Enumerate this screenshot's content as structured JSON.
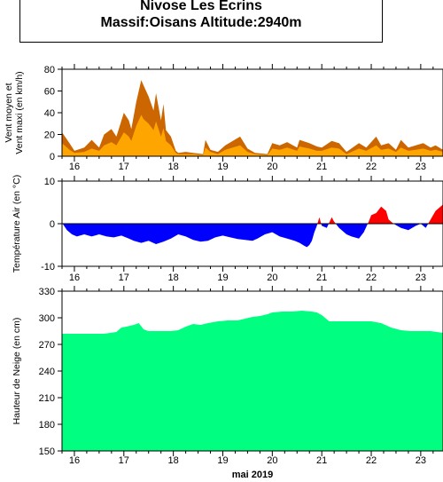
{
  "header": {
    "line1": "Nivose Les Ecrins",
    "line2": "Massif:Oisans Altitude:2940m"
  },
  "colors": {
    "wind_max": "#cc6600",
    "wind_mean": "#ffa500",
    "temp_positive": "#ff0000",
    "temp_negative": "#0000ff",
    "snow": "#00ff80"
  },
  "chart_data": [
    {
      "type": "area",
      "ylabel": "Vent moyen et\nVent maxi (en km/h)",
      "ylim": [
        0,
        80
      ],
      "yticks": [
        0,
        20,
        40,
        60,
        80
      ],
      "xlim": [
        15.75,
        23.45
      ],
      "x_tick_labels": [
        "16",
        "17",
        "18",
        "19",
        "20",
        "21",
        "22",
        "23"
      ],
      "grid": false,
      "series": [
        {
          "key": "max",
          "x": [
            15.75,
            15.9,
            16.0,
            16.2,
            16.35,
            16.5,
            16.6,
            16.75,
            16.85,
            17.0,
            17.1,
            17.15,
            17.25,
            17.35,
            17.4,
            17.5,
            17.6,
            17.65,
            17.75,
            17.8,
            17.85,
            17.95,
            18.05,
            18.1,
            18.25,
            18.4,
            18.6,
            18.65,
            18.75,
            18.9,
            19.05,
            19.2,
            19.35,
            19.5,
            19.65,
            19.9,
            20.0,
            20.15,
            20.3,
            20.5,
            20.55,
            20.75,
            20.9,
            21.0,
            21.2,
            21.35,
            21.5,
            21.75,
            21.9,
            22.1,
            22.2,
            22.35,
            22.5,
            22.6,
            22.75,
            22.9,
            23.05,
            23.2,
            23.3,
            23.45
          ],
          "values": [
            22,
            12,
            5,
            8,
            15,
            8,
            20,
            25,
            18,
            40,
            33,
            25,
            50,
            70,
            65,
            55,
            42,
            58,
            33,
            48,
            24,
            18,
            5,
            3,
            4,
            3,
            2,
            15,
            6,
            4,
            10,
            14,
            18,
            7,
            3,
            2,
            12,
            10,
            13,
            8,
            15,
            12,
            9,
            8,
            14,
            12,
            4,
            12,
            8,
            18,
            10,
            12,
            6,
            15,
            8,
            10,
            12,
            8,
            10,
            6
          ]
        },
        {
          "key": "mean",
          "x": [
            15.75,
            15.9,
            16.0,
            16.2,
            16.35,
            16.5,
            16.6,
            16.75,
            16.85,
            17.0,
            17.1,
            17.15,
            17.25,
            17.35,
            17.4,
            17.5,
            17.6,
            17.65,
            17.75,
            17.8,
            17.85,
            17.95,
            18.05,
            18.1,
            18.25,
            18.4,
            18.6,
            18.65,
            18.75,
            18.9,
            19.05,
            19.2,
            19.35,
            19.5,
            19.65,
            19.9,
            20.0,
            20.15,
            20.3,
            20.5,
            20.55,
            20.75,
            20.9,
            21.0,
            21.2,
            21.35,
            21.5,
            21.75,
            21.9,
            22.1,
            22.2,
            22.35,
            22.5,
            22.6,
            22.75,
            22.9,
            23.05,
            23.2,
            23.3,
            23.45
          ],
          "values": [
            12,
            6,
            3,
            4,
            7,
            5,
            10,
            13,
            10,
            22,
            18,
            14,
            28,
            38,
            34,
            30,
            24,
            32,
            18,
            26,
            14,
            10,
            3,
            2,
            2,
            2,
            1,
            8,
            4,
            2,
            6,
            8,
            10,
            4,
            2,
            1,
            7,
            6,
            8,
            5,
            9,
            7,
            5,
            5,
            8,
            7,
            2,
            7,
            5,
            10,
            6,
            7,
            4,
            8,
            5,
            6,
            7,
            5,
            6,
            4
          ]
        }
      ]
    },
    {
      "type": "area",
      "ylabel": "Température Air (en °C)",
      "ylim": [
        -10,
        10
      ],
      "yticks": [
        -10,
        0,
        10
      ],
      "xlim": [
        15.75,
        23.45
      ],
      "x_tick_labels": [
        "16",
        "17",
        "18",
        "19",
        "20",
        "21",
        "22",
        "23"
      ],
      "grid": false,
      "series": [
        {
          "key": "temperature",
          "x": [
            15.75,
            15.85,
            15.95,
            16.05,
            16.2,
            16.35,
            16.5,
            16.65,
            16.8,
            16.95,
            17.1,
            17.2,
            17.35,
            17.5,
            17.65,
            17.8,
            17.95,
            18.1,
            18.25,
            18.4,
            18.55,
            18.7,
            18.85,
            19.0,
            19.15,
            19.3,
            19.45,
            19.6,
            19.7,
            19.85,
            20.0,
            20.15,
            20.3,
            20.45,
            20.55,
            20.65,
            20.7,
            20.75,
            20.8,
            20.85,
            20.9,
            20.95,
            21.0,
            21.1,
            21.2,
            21.25,
            21.35,
            21.5,
            21.6,
            21.75,
            21.85,
            21.95,
            22.0,
            22.1,
            22.2,
            22.3,
            22.35,
            22.45,
            22.6,
            22.75,
            22.9,
            23.0,
            23.1,
            23.2,
            23.3,
            23.45
          ],
          "values": [
            0.2,
            -1.5,
            -2.5,
            -3.0,
            -2.5,
            -3.0,
            -2.5,
            -3.0,
            -3.2,
            -2.8,
            -3.5,
            -4.0,
            -4.5,
            -4.0,
            -4.8,
            -4.2,
            -3.5,
            -2.5,
            -3.0,
            -3.8,
            -4.2,
            -4.0,
            -3.2,
            -2.8,
            -3.2,
            -3.6,
            -3.8,
            -4.0,
            -3.5,
            -2.5,
            -2.0,
            -3.0,
            -3.5,
            -4.0,
            -4.5,
            -5.2,
            -5.5,
            -5.0,
            -4.0,
            -2.0,
            -0.5,
            1.5,
            -0.5,
            -1.0,
            1.5,
            0.5,
            -1.0,
            -2.5,
            -3.0,
            -3.5,
            -2.0,
            0.5,
            2.0,
            2.5,
            4.0,
            3.0,
            1.0,
            0.0,
            -1.0,
            -1.5,
            -0.5,
            0.0,
            -1.0,
            1.0,
            3.0,
            4.5
          ]
        }
      ]
    },
    {
      "type": "area",
      "ylabel": "Hauteur de Neige (en cm)",
      "xlabel": "mai 2019",
      "ylim": [
        150,
        330
      ],
      "yticks": [
        150,
        180,
        210,
        240,
        270,
        300,
        330
      ],
      "xlim": [
        15.75,
        23.45
      ],
      "x_tick_labels": [
        "16",
        "17",
        "18",
        "19",
        "20",
        "21",
        "22",
        "23"
      ],
      "grid": false,
      "series": [
        {
          "key": "snow_depth",
          "x": [
            15.75,
            16.0,
            16.3,
            16.6,
            16.85,
            16.95,
            17.05,
            17.2,
            17.3,
            17.4,
            17.5,
            17.65,
            17.8,
            17.95,
            18.1,
            18.25,
            18.4,
            18.55,
            18.7,
            18.9,
            19.1,
            19.3,
            19.45,
            19.6,
            19.75,
            19.9,
            20.0,
            20.2,
            20.4,
            20.6,
            20.8,
            20.9,
            21.0,
            21.15,
            21.4,
            21.7,
            21.9,
            22.0,
            22.2,
            22.4,
            22.6,
            22.8,
            23.0,
            23.2,
            23.45
          ],
          "values": [
            282,
            282,
            282,
            282,
            284,
            289,
            290,
            292,
            294,
            287,
            285,
            285,
            285,
            285,
            286,
            290,
            293,
            292,
            294,
            296,
            297,
            297,
            299,
            301,
            302,
            304,
            306,
            307,
            307,
            308,
            307,
            306,
            303,
            296,
            296,
            296,
            296,
            296,
            294,
            289,
            286,
            285,
            285,
            285,
            283
          ]
        }
      ]
    }
  ]
}
